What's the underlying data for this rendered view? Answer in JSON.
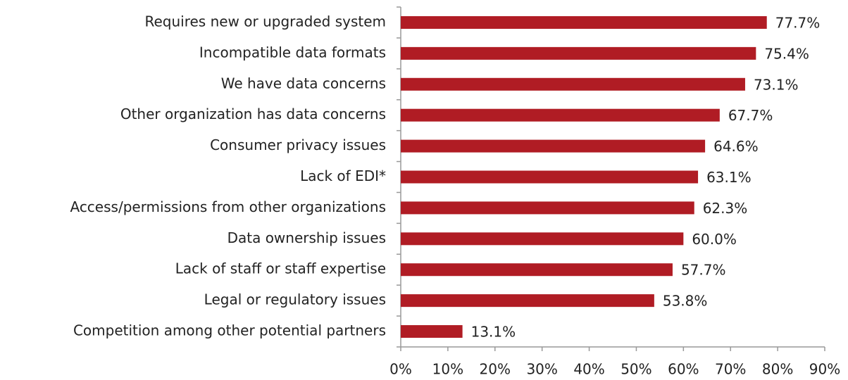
{
  "chart_data": {
    "type": "bar",
    "orientation": "horizontal",
    "categories": [
      "Requires new or upgraded system",
      "Incompatible data formats",
      "We have data concerns",
      "Other organization has data concerns",
      "Consumer privacy issues",
      "Lack of EDI*",
      "Access/permissions from other organizations",
      "Data ownership issues",
      "Lack of staff or staff expertise",
      "Legal or regulatory issues",
      "Competition among other potential partners"
    ],
    "values": [
      77.7,
      75.4,
      73.1,
      67.7,
      64.6,
      63.1,
      62.3,
      60.0,
      57.7,
      53.8,
      13.1
    ],
    "value_labels": [
      "77.7%",
      "75.4%",
      "73.1%",
      "67.7%",
      "64.6%",
      "63.1%",
      "62.3%",
      "60.0%",
      "57.7%",
      "53.8%",
      "13.1%"
    ],
    "color": "#b01c24",
    "xlim": [
      0,
      90
    ],
    "xticks": [
      {
        "value": 0,
        "label": "0%"
      },
      {
        "value": 10,
        "label": "10%"
      },
      {
        "value": 20,
        "label": "20%"
      },
      {
        "value": 30,
        "label": "30%"
      },
      {
        "value": 40,
        "label": "40%"
      },
      {
        "value": 50,
        "label": "50%"
      },
      {
        "value": 60,
        "label": "60%"
      },
      {
        "value": 70,
        "label": "70%"
      },
      {
        "value": 80,
        "label": "80%"
      },
      {
        "value": 90,
        "label": "90%"
      }
    ],
    "grid": false
  }
}
